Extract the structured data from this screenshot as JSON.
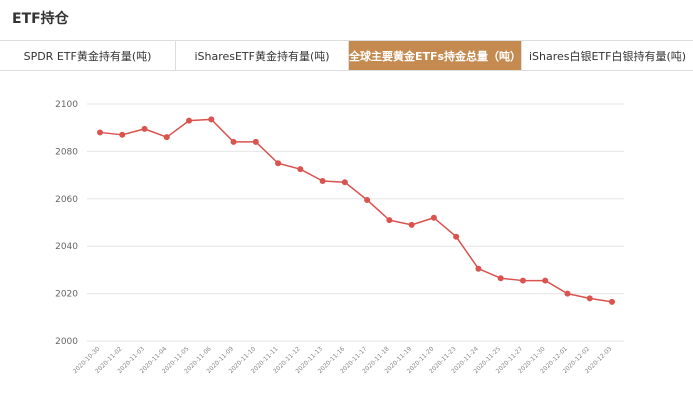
{
  "section_title": "ETF持仓",
  "tabs": [
    {
      "label": "SPDR ETF黄金持有量(吨)",
      "active": false
    },
    {
      "label": "iSharesETF黄金持有量(吨)",
      "active": false
    },
    {
      "label": "全球主要黄金ETFs持金总量（吨）",
      "active": true
    },
    {
      "label": "iShares白银ETF白银持有量(吨)",
      "active": false
    }
  ],
  "colors": {
    "accent": "#c48a50",
    "line": "#d9534f",
    "grid": "#e6e6e6"
  },
  "chart_data": {
    "type": "line",
    "categories": [
      "2020-10-30",
      "2020-11-02",
      "2020-11-03",
      "2020-11-04",
      "2020-11-05",
      "2020-11-06",
      "2020-11-09",
      "2020-11-10",
      "2020-11-11",
      "2020-11-12",
      "2020-11-13",
      "2020-11-16",
      "2020-11-17",
      "2020-11-18",
      "2020-11-19",
      "2020-11-20",
      "2020-11-23",
      "2020-11-24",
      "2020-11-25",
      "2020-11-27",
      "2020-11-30",
      "2020-12-01",
      "2020-12-02",
      "2020-12-03"
    ],
    "values": [
      2088,
      2087,
      2089.5,
      2086,
      2093,
      2093.5,
      2084,
      2084,
      2075,
      2072.5,
      2067.5,
      2067,
      2059.5,
      2051,
      2049,
      2052,
      2044,
      2030.5,
      2026.5,
      2025.5,
      2025.5,
      2020,
      2018,
      2016.5
    ],
    "yticks": [
      2000,
      2020,
      2040,
      2060,
      2080,
      2100
    ],
    "ylim": [
      2000,
      2100
    ],
    "grid": true,
    "legend": "none"
  }
}
